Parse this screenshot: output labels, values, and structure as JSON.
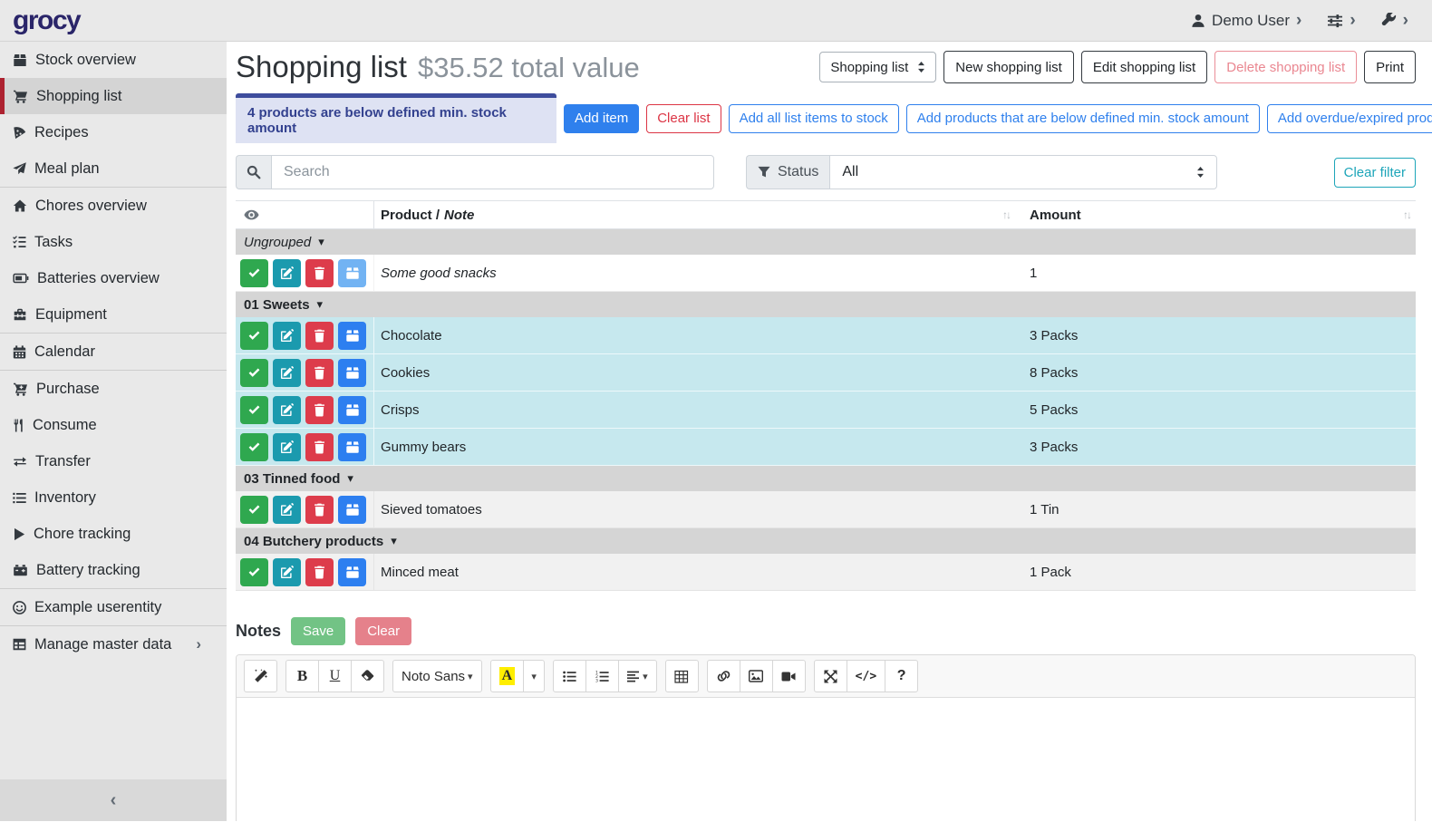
{
  "topbar": {
    "brand": "grocy",
    "user_label": "Demo User"
  },
  "glyphs": {
    "chevron_right": "›",
    "caret_down": "▾",
    "collapse": "‹",
    "sort": "↑↓"
  },
  "sidebar": {
    "items": [
      {
        "label": "Stock overview",
        "icon": "box-icon"
      },
      {
        "label": "Shopping list",
        "icon": "shopping-cart-icon",
        "active": true
      },
      {
        "label": "Recipes",
        "icon": "pizza-icon"
      },
      {
        "label": "Meal plan",
        "icon": "paper-plane-icon"
      },
      {
        "label": "Chores overview",
        "icon": "home-icon",
        "divider_before": true
      },
      {
        "label": "Tasks",
        "icon": "tasks-icon"
      },
      {
        "label": "Batteries overview",
        "icon": "battery-icon"
      },
      {
        "label": "Equipment",
        "icon": "toolbox-icon"
      },
      {
        "label": "Calendar",
        "icon": "calendar-icon",
        "divider_before": true
      },
      {
        "label": "Purchase",
        "icon": "cart-plus-icon",
        "divider_before": true
      },
      {
        "label": "Consume",
        "icon": "utensils-icon"
      },
      {
        "label": "Transfer",
        "icon": "exchange-icon"
      },
      {
        "label": "Inventory",
        "icon": "list-icon"
      },
      {
        "label": "Chore tracking",
        "icon": "play-icon"
      },
      {
        "label": "Battery tracking",
        "icon": "car-battery-icon"
      },
      {
        "label": "Example userentity",
        "icon": "smile-icon",
        "divider_before": true
      },
      {
        "label": "Manage master data",
        "icon": "table-icon",
        "divider_before": true,
        "chevron": true
      }
    ]
  },
  "page": {
    "title": "Shopping list",
    "subtitle": "$35.52 total value"
  },
  "list_actions": {
    "selected_list": "Shopping list",
    "new": "New shopping list",
    "edit": "Edit shopping list",
    "delete": "Delete shopping list",
    "print": "Print"
  },
  "banner": {
    "text": "4 products are below defined min. stock amount"
  },
  "actions": {
    "add_item": "Add item",
    "clear_list": "Clear list",
    "outline": [
      "Add all list items to stock",
      "Add products that are below defined min. stock amount",
      "Add overdue/expired products"
    ]
  },
  "filters": {
    "search_placeholder": "Search",
    "status_label": "Status",
    "status_value": "All",
    "clear_filter": "Clear filter"
  },
  "table": {
    "product_header": "Product /",
    "note_header": "Note",
    "amount_header": "Amount",
    "groups": [
      {
        "label": "Ungrouped",
        "italic": true,
        "rows": [
          {
            "product": "Some good snacks",
            "amount": "1",
            "italic": true,
            "bg": "white",
            "stock_light": true
          }
        ]
      },
      {
        "label": "01 Sweets",
        "rows": [
          {
            "product": "Chocolate",
            "amount": "3 Packs",
            "bg": "cyan"
          },
          {
            "product": "Cookies",
            "amount": "8 Packs",
            "bg": "cyan"
          },
          {
            "product": "Crisps",
            "amount": "5 Packs",
            "bg": "cyan"
          },
          {
            "product": "Gummy bears",
            "amount": "3 Packs",
            "bg": "cyan"
          }
        ]
      },
      {
        "label": "03 Tinned food",
        "rows": [
          {
            "product": "Sieved tomatoes",
            "amount": "1 Tin",
            "bg": "stripe"
          }
        ]
      },
      {
        "label": "04 Butchery products",
        "rows": [
          {
            "product": "Minced meat",
            "amount": "1 Pack",
            "bg": "stripe"
          }
        ]
      }
    ]
  },
  "notes": {
    "title": "Notes",
    "save": "Save",
    "clear": "Clear"
  },
  "editor": {
    "font_name": "Noto Sans",
    "bold": "B",
    "underline": "U",
    "color_letter": "A",
    "code": "</>",
    "help": "?"
  },
  "colors": {
    "accent_blue": "#2f80ed",
    "danger_red": "#dc3545",
    "info_teal": "#1da5b9",
    "banner_blue": "#3e4d9d",
    "highlight_row": "#c6e8ee",
    "active_border_red": "#ad2230"
  }
}
